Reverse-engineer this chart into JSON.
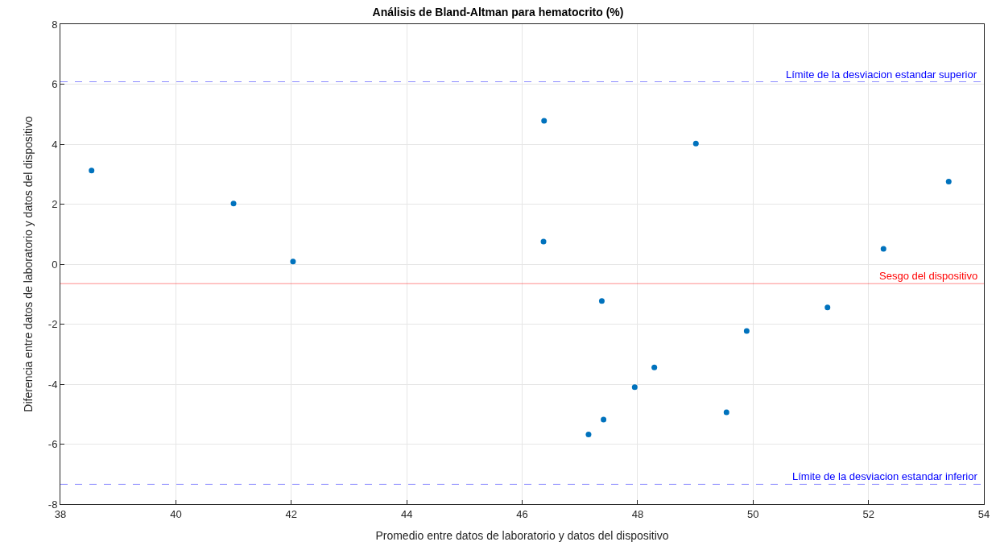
{
  "chart_data": {
    "type": "scatter",
    "title": "Análisis de Bland-Altman para hematocrito (%)",
    "xlabel": "Promedio entre datos de laboratorio y datos del dispositivo",
    "ylabel": "Diferencia entre datos de laboratorio y datos del dispositivo",
    "x": [
      38.54,
      41.0,
      42.03,
      46.38,
      46.37,
      47.38,
      49.01,
      53.39,
      52.26,
      51.29,
      49.89,
      48.29,
      47.95,
      47.41,
      47.15,
      49.54
    ],
    "series": [
      {
        "color": "#0072bd",
        "values": [
          3.12,
          2.02,
          0.09,
          4.78,
          0.75,
          -1.23,
          4.02,
          2.75,
          0.51,
          -1.44,
          -2.23,
          -3.44,
          -4.1,
          -5.18,
          -5.68,
          -4.94
        ]
      }
    ],
    "xlim": [
      38,
      54
    ],
    "xticks": [
      38,
      40,
      42,
      44,
      46,
      48,
      50,
      52,
      54
    ],
    "ylim": [
      -8,
      8
    ],
    "yticks": [
      -8,
      -6,
      -4,
      -2,
      0,
      2,
      4,
      6,
      8
    ],
    "ref_lines": [
      {
        "axis": "y",
        "value": 6.08,
        "label": "Límite de la desviacion estandar superior",
        "color": "#0000ff",
        "line_style": "dashed"
      },
      {
        "axis": "y",
        "value": -0.65,
        "label": "Sesgo del dispositivo",
        "color": "#ff0000",
        "line_style": "solid"
      },
      {
        "axis": "y",
        "value": -7.34,
        "label": "Límite de la desviacion estandar inferior",
        "color": "#0000ff",
        "line_style": "dashed"
      }
    ],
    "grid": true,
    "marker": "circle"
  }
}
